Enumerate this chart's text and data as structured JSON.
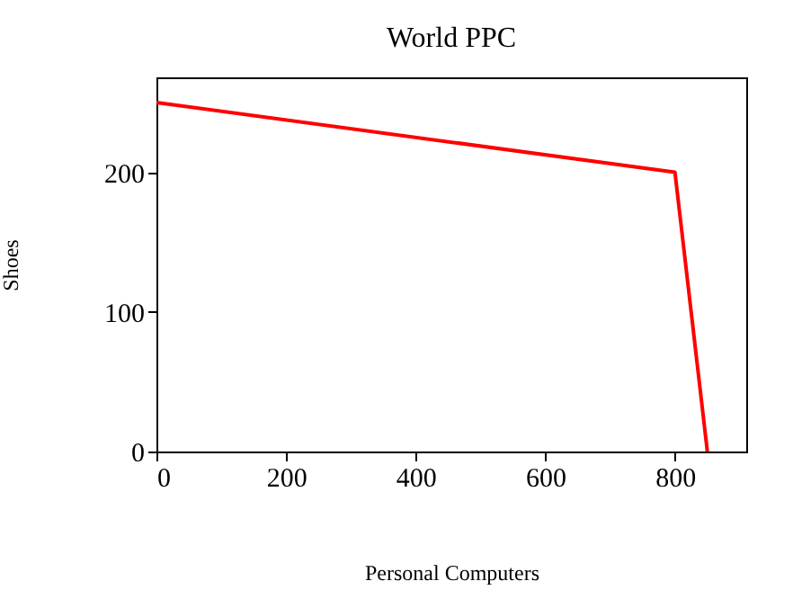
{
  "chart_data": {
    "type": "line",
    "title": "World PPC",
    "xlabel": "Personal Computers",
    "ylabel": "Shoes",
    "x": [
      0,
      800,
      850
    ],
    "series": [
      {
        "color": "#ff0000",
        "values": [
          250,
          200,
          0
        ]
      }
    ],
    "xlim": [
      0,
      910
    ],
    "xticks": [
      0,
      200,
      400,
      600,
      800
    ],
    "ylim": [
      0,
      268
    ],
    "yticks": [
      0,
      100,
      200
    ],
    "grid": false,
    "marker": "none",
    "line_style": "solid"
  }
}
